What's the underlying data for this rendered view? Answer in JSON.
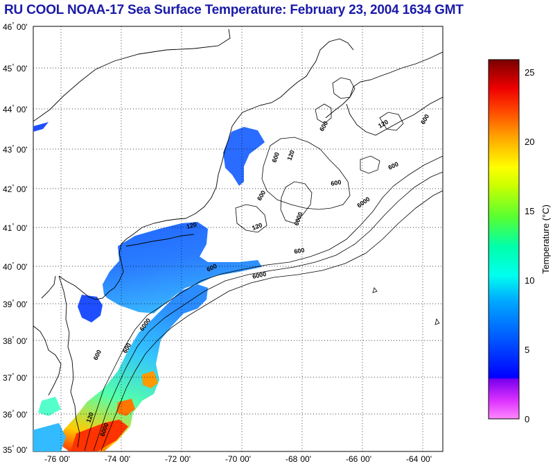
{
  "title": "RU COOL  NOAA-17  Sea Surface Temperature:  February 23, 2004 1634 GMT",
  "map": {
    "lat_labels": [
      {
        "deg": "46",
        "min": "00'"
      },
      {
        "deg": "45",
        "min": "00'"
      },
      {
        "deg": "44",
        "min": "00'"
      },
      {
        "deg": "43",
        "min": "00'"
      },
      {
        "deg": "42",
        "min": "00'"
      },
      {
        "deg": "41",
        "min": "00'"
      },
      {
        "deg": "40",
        "min": "00'"
      },
      {
        "deg": "39",
        "min": "00'"
      },
      {
        "deg": "38",
        "min": "00'"
      },
      {
        "deg": "37",
        "min": "00'"
      },
      {
        "deg": "36",
        "min": "00'"
      },
      {
        "deg": "35",
        "min": "00'"
      }
    ],
    "lon_labels": [
      {
        "deg": "-76",
        "min": "00'"
      },
      {
        "deg": "-74",
        "min": "00'"
      },
      {
        "deg": "-72",
        "min": "00'"
      },
      {
        "deg": "-70",
        "min": "00'"
      },
      {
        "deg": "-68",
        "min": "00'"
      },
      {
        "deg": "-66",
        "min": "00'"
      },
      {
        "deg": "-64",
        "min": "00'"
      }
    ],
    "contour_labels": [
      "600",
      "6000",
      "600",
      "6000",
      "600",
      "6000",
      "120",
      "600",
      "600",
      "120",
      "600",
      "6000",
      "600",
      "120",
      "120",
      "600",
      "6000",
      "600",
      "120",
      "600"
    ]
  },
  "colorbar": {
    "ticks": [
      "25",
      "20",
      "15",
      "10",
      "5",
      "0"
    ],
    "title": "Temperature (°C)",
    "colors": [
      "#ff66ff",
      "#aa00ee",
      "#0000ff",
      "#0066ff",
      "#00ccff",
      "#00ffcc",
      "#66ff33",
      "#ffff00",
      "#ff9900",
      "#ff0000",
      "#8b0000"
    ]
  }
}
